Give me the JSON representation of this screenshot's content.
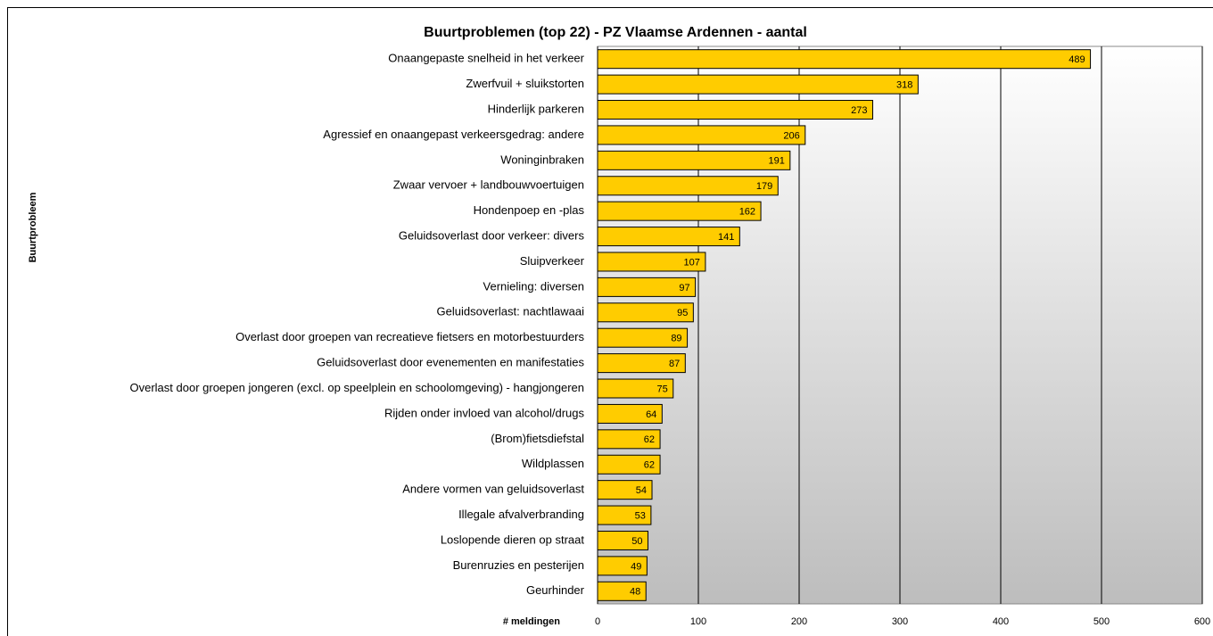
{
  "chart_data": {
    "type": "bar",
    "orientation": "horizontal",
    "title": "Buurtproblemen (top 22) - PZ Vlaamse Ardennen - aantal",
    "y_label": "Buurtprobleem",
    "x_label": "# meldingen",
    "categories": [
      "Onaangepaste snelheid in het verkeer",
      "Zwerfvuil + sluikstorten",
      "Hinderlijk parkeren",
      "Agressief en onaangepast verkeersgedrag: andere",
      "Woninginbraken",
      "Zwaar vervoer + landbouwvoertuigen",
      "Hondenpoep en -plas",
      "Geluidsoverlast door verkeer: divers",
      "Sluipverkeer",
      "Vernieling: diversen",
      "Geluidsoverlast: nachtlawaai",
      "Overlast door groepen van recreatieve fietsers en motorbestuurders",
      "Geluidsoverlast door evenementen en manifestaties",
      "Overlast door groepen jongeren (excl. op speelplein en schoolomgeving) - hangjongeren",
      "Rijden onder invloed van alcohol/drugs",
      "(Brom)fietsdiefstal",
      "Wildplassen",
      "Andere vormen van geluidsoverlast",
      "Illegale afvalverbranding",
      "Loslopende dieren op straat",
      "Burenruzies en pesterijen",
      "Geurhinder"
    ],
    "values": [
      489,
      318,
      273,
      206,
      191,
      179,
      162,
      141,
      107,
      97,
      95,
      89,
      87,
      75,
      64,
      62,
      62,
      54,
      53,
      50,
      49,
      48
    ],
    "color": "#ffcc00",
    "xlim": [
      0,
      600
    ],
    "xticks": [
      0,
      100,
      200,
      300,
      400,
      500,
      600
    ],
    "grid": true
  }
}
